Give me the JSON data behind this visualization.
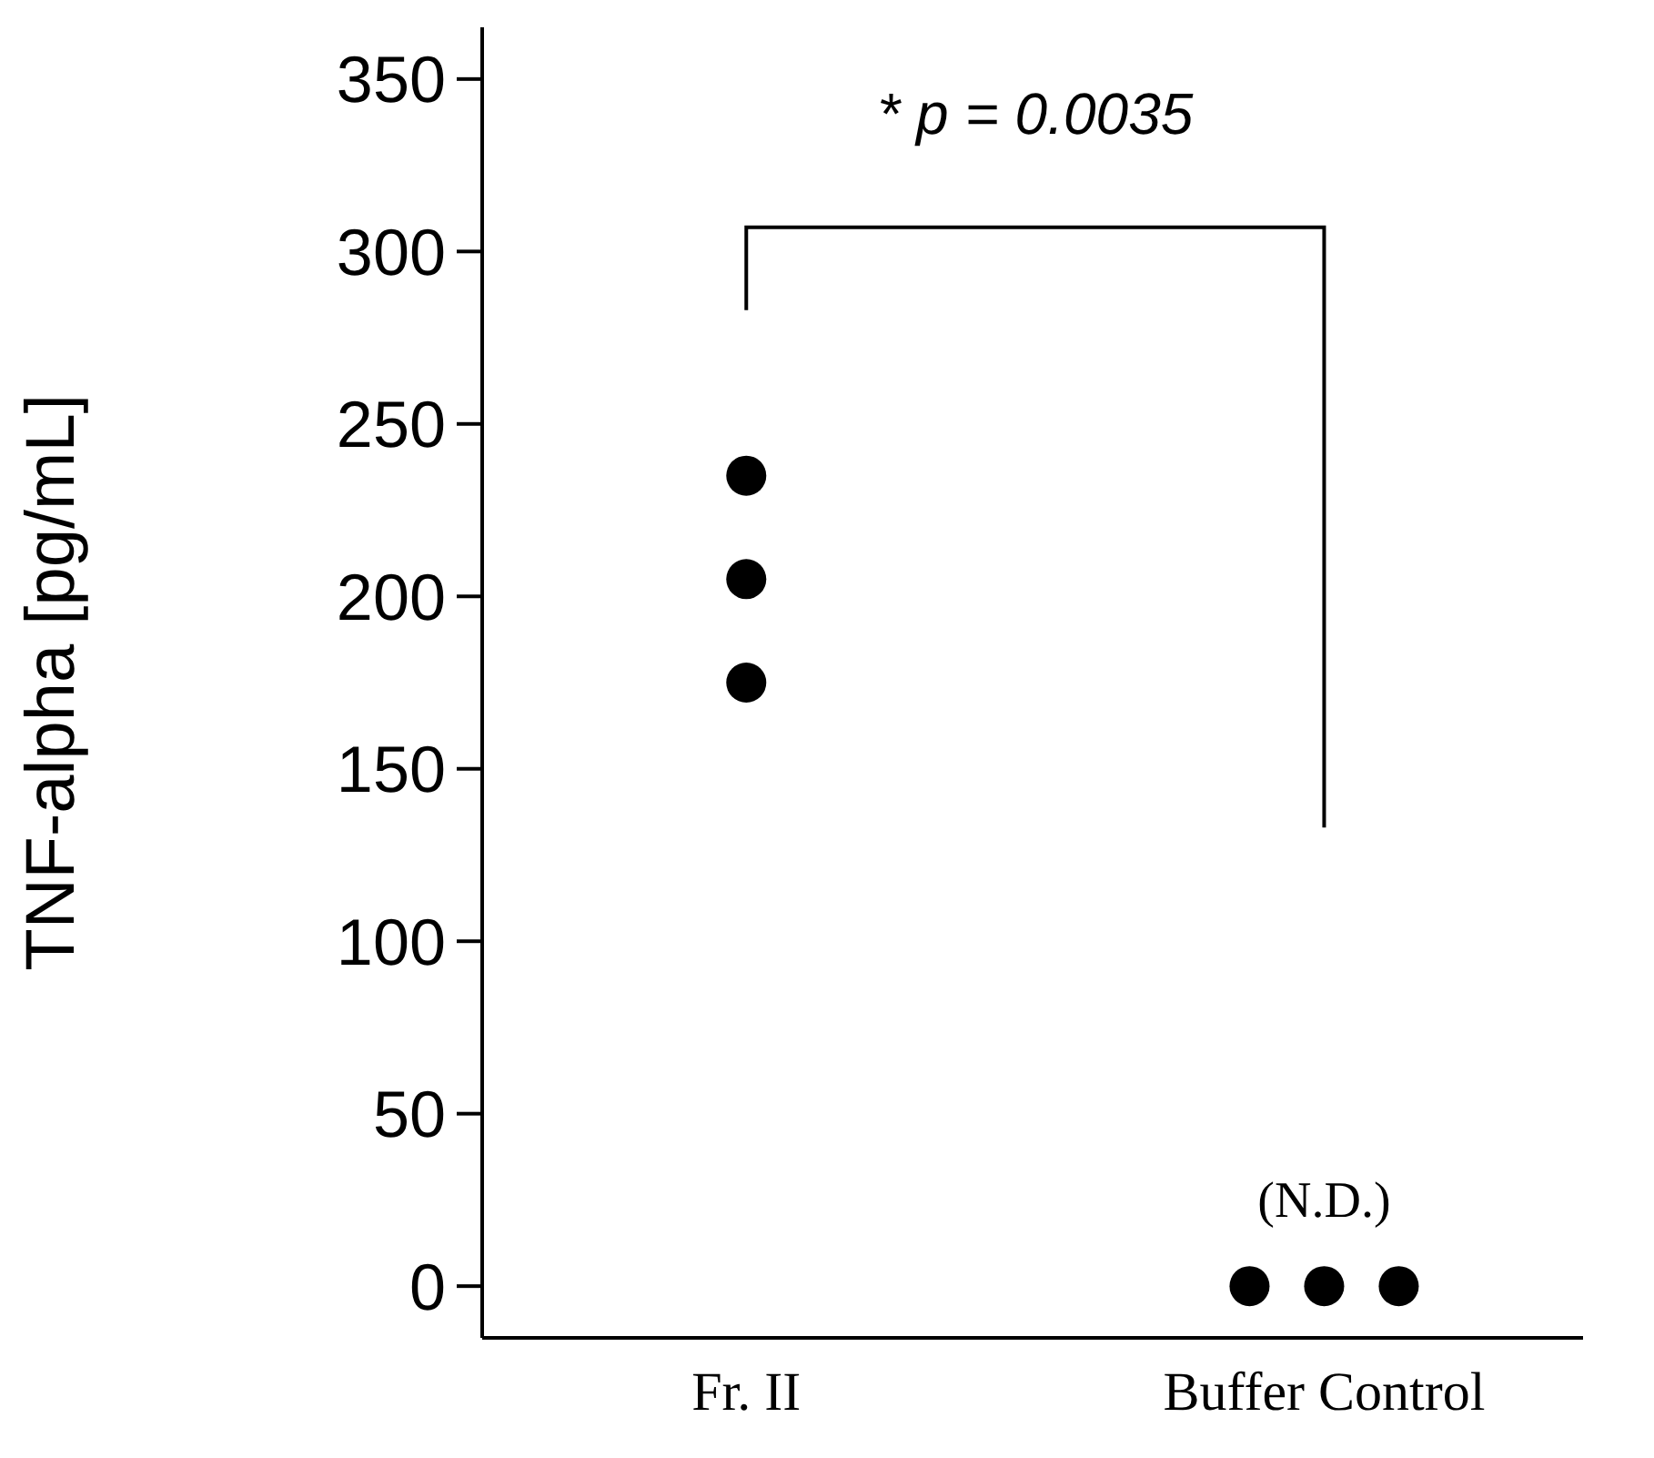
{
  "chart_data": {
    "type": "scatter",
    "ylabel": "TNF-alpha [pg/mL]",
    "categories": [
      "Fr. II",
      "Buffer Control"
    ],
    "ylim": [
      -15,
      365
    ],
    "yticks": [
      0,
      50,
      100,
      150,
      200,
      250,
      300,
      350
    ],
    "marker": "circle",
    "series": [
      {
        "color": "#000000",
        "x": [
          "Fr. II",
          "Fr. II",
          "Fr. II",
          "Buffer Control",
          "Buffer Control",
          "Buffer Control"
        ],
        "values": [
          235,
          205,
          175,
          0,
          0,
          0
        ]
      }
    ],
    "annotations": [
      "* p = 0.0035",
      {
        "text": "(N.D.)",
        "x": "Buffer Control",
        "y": 0
      }
    ]
  }
}
